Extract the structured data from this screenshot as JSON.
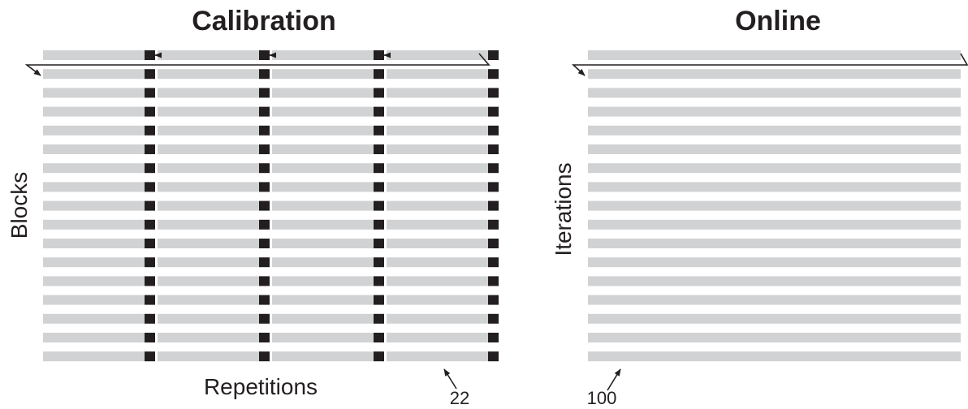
{
  "calibration": {
    "title": "Calibration",
    "y_label": "Blocks",
    "x_label": "Repetitions",
    "annotation": "22",
    "block_rows": 17,
    "repetition_columns": 4
  },
  "online": {
    "title": "Online",
    "y_label": "Iterations",
    "annotation": "100",
    "iteration_rows": 17
  },
  "colors": {
    "bar": "#d1d2d4",
    "marker": "#231f20",
    "line": "#231f20",
    "text": "#231f20"
  }
}
